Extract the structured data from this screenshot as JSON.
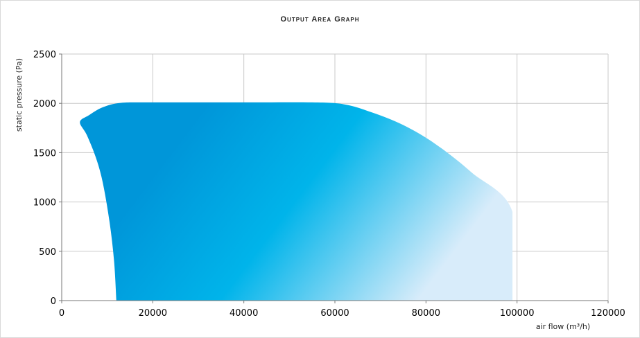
{
  "chart_data": {
    "type": "area",
    "title": "Output Area Graph",
    "xlabel": "air flow (m³/h)",
    "ylabel": "static pressure (Pa)",
    "xlim": [
      0,
      120000
    ],
    "ylim": [
      0,
      2500
    ],
    "x_ticks": [
      "0",
      "20000",
      "40000",
      "60000",
      "80000",
      "100000",
      "120000"
    ],
    "y_ticks": [
      "0",
      "500",
      "1000",
      "1500",
      "2000",
      "2500"
    ],
    "grid": true,
    "colors": {
      "fill_dark": "#0096d9",
      "fill_mid": "#00b4ea",
      "fill_light": "#d8ecfa",
      "grid": "#c8c8c8",
      "axis": "#777777"
    },
    "series": [
      {
        "x": [
          12000,
          11500,
          10500,
          9000,
          7500,
          5500,
          4000,
          6000,
          9000,
          13000,
          20000,
          40000,
          55000,
          62000,
          68000,
          75000,
          82000,
          90000,
          99000,
          99000
        ],
        "y": [
          0,
          400,
          800,
          1200,
          1450,
          1680,
          1810,
          1880,
          1960,
          2005,
          2010,
          2010,
          2010,
          1990,
          1910,
          1780,
          1590,
          1300,
          900,
          0
        ]
      }
    ]
  }
}
